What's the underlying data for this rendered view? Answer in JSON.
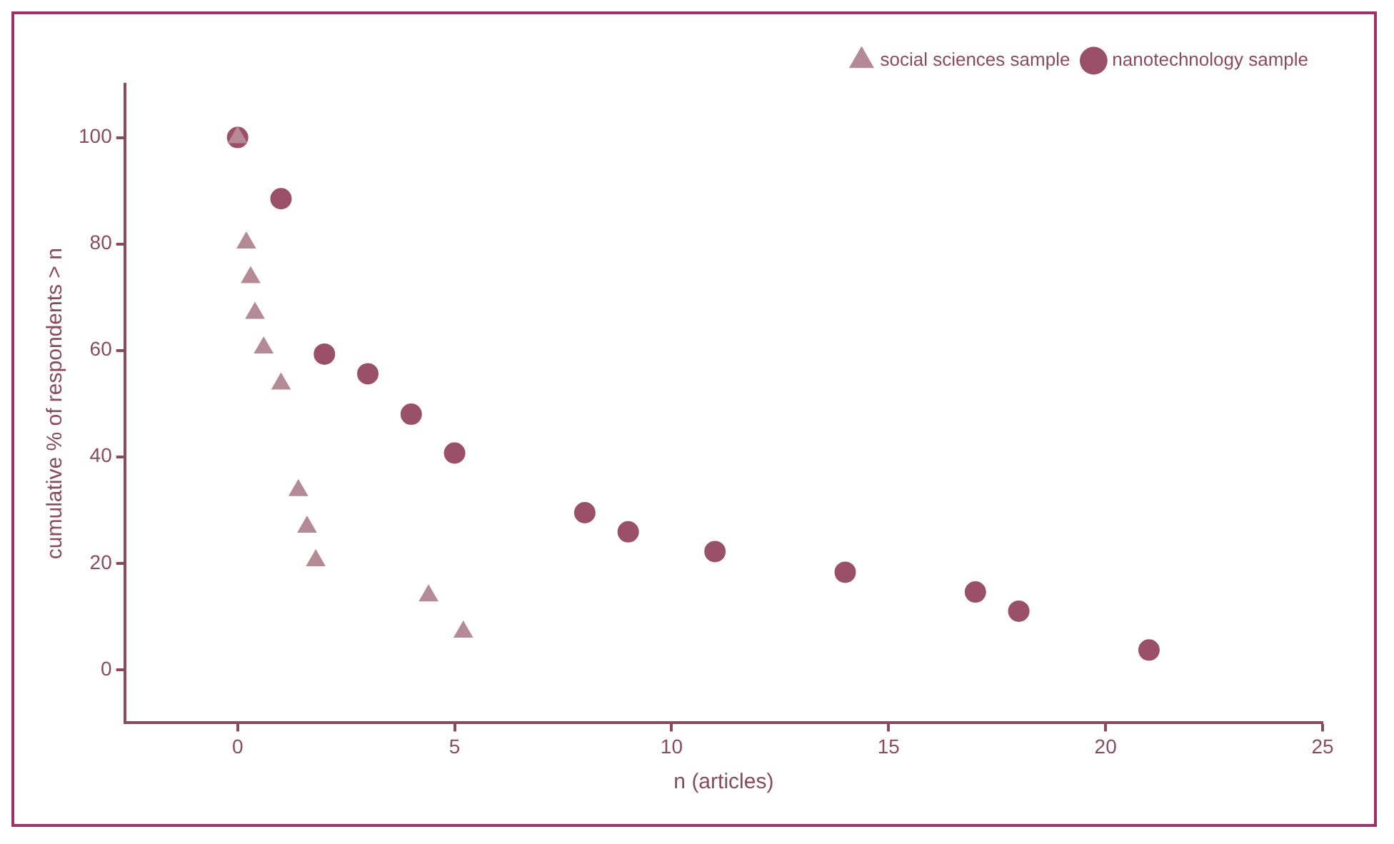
{
  "chart_data": {
    "type": "scatter",
    "xlabel": "n (articles)",
    "ylabel": "cumulative % of respondents > n",
    "xlim": [
      -2.6,
      25
    ],
    "xticks": [
      0,
      5,
      10,
      15,
      20,
      25
    ],
    "ylim": [
      -10,
      110
    ],
    "yticks": [
      0,
      20,
      40,
      60,
      80,
      100
    ],
    "grid": false,
    "legend": "top right",
    "series": [
      {
        "name": "nanotechnology sample",
        "color": "#9a5068",
        "marker": "circle",
        "x": [
          0,
          1,
          2,
          3,
          4,
          5,
          8,
          9,
          11,
          14,
          17,
          18,
          21
        ],
        "values": [
          100,
          88.5,
          59.3,
          55.6,
          48,
          40.7,
          29.5,
          25.9,
          22.2,
          18.3,
          14.6,
          11,
          3.7
        ]
      },
      {
        "name": "social sciences sample",
        "color": "#b48a96",
        "marker": "triangle",
        "x": [
          0,
          0.2,
          0.3,
          0.4,
          0.6,
          1,
          1.4,
          1.6,
          1.8,
          4.4,
          5.2
        ],
        "values": [
          100,
          80.2,
          73.7,
          67,
          60.5,
          53.7,
          33.7,
          26.8,
          20.5,
          13.9,
          7.1
        ]
      }
    ]
  }
}
